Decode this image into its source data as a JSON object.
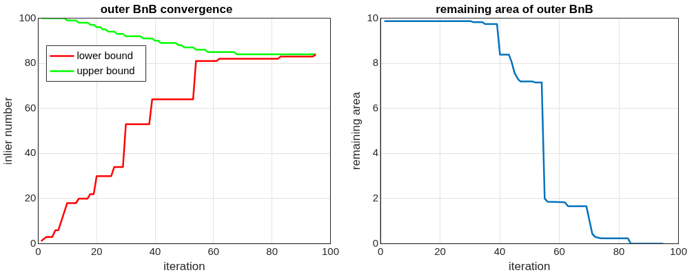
{
  "chart_data": [
    {
      "type": "line",
      "title": "outer BnB convergence",
      "xlabel": "iteration",
      "ylabel": "inlier number",
      "xlim": [
        0,
        100
      ],
      "xticks": [
        0,
        20,
        40,
        60,
        80,
        100
      ],
      "ylim": [
        0,
        100
      ],
      "yticks": [
        0,
        20,
        40,
        60,
        80,
        100
      ],
      "grid": true,
      "legend": "top left",
      "series": [
        {
          "name": "lower bound",
          "color": "#ff0000",
          "x": [
            1,
            2.8,
            4.8,
            5.9,
            6.9,
            7.9,
            9.9,
            12.9,
            13.9,
            16.9,
            17.8,
            19,
            20,
            25,
            26,
            29,
            30,
            38,
            39,
            53,
            54,
            61,
            62,
            82,
            83,
            94,
            95
          ],
          "values": [
            1.2,
            3,
            3,
            6,
            6,
            10,
            18,
            18,
            20,
            20,
            22,
            22,
            30,
            30,
            34,
            34,
            53,
            53,
            64,
            64,
            81,
            81,
            82,
            82,
            83,
            83,
            84
          ]
        },
        {
          "name": "upper bound",
          "color": "#00ff00",
          "x": [
            1,
            8.9,
            10,
            12.9,
            13.9,
            16.9,
            18,
            19,
            20,
            21.4,
            22,
            23,
            24,
            26,
            27,
            29,
            30,
            35,
            36,
            39,
            40,
            41,
            42,
            47,
            48,
            49,
            50,
            53,
            54,
            57,
            58,
            67,
            68,
            95
          ],
          "values": [
            100,
            100,
            99,
            99,
            98,
            98,
            97,
            97,
            96,
            96,
            95,
            95,
            94,
            94,
            93,
            93,
            92,
            92,
            91,
            91,
            90,
            90,
            89,
            89,
            88,
            88,
            87,
            87,
            86,
            86,
            85,
            85,
            84,
            84
          ]
        }
      ]
    },
    {
      "type": "line",
      "title": "remaining area of outer BnB",
      "xlabel": "iteration",
      "ylabel": "remaining area",
      "xlim": [
        0,
        100
      ],
      "xticks": [
        0,
        20,
        40,
        60,
        80,
        100
      ],
      "ylim": [
        0,
        10
      ],
      "yticks": [
        0,
        2,
        4,
        6,
        8,
        10
      ],
      "grid": true,
      "series": [
        {
          "color": "#0072bd",
          "x": [
            1.3,
            30.2,
            31.2,
            34.2,
            35.1,
            39.1,
            40.1,
            43.1,
            44,
            45,
            46.2,
            47,
            51.1,
            51.9,
            54.1,
            55.1,
            56.1,
            61.8,
            63,
            69.1,
            71.1,
            72.1,
            74,
            83,
            84,
            94.9
          ],
          "values": [
            9.87,
            9.87,
            9.82,
            9.82,
            9.74,
            9.74,
            8.38,
            8.38,
            8.06,
            7.57,
            7.29,
            7.19,
            7.19,
            7.15,
            7.15,
            2.0,
            1.86,
            1.84,
            1.66,
            1.66,
            0.43,
            0.3,
            0.24,
            0.24,
            0,
            0
          ]
        }
      ]
    }
  ]
}
